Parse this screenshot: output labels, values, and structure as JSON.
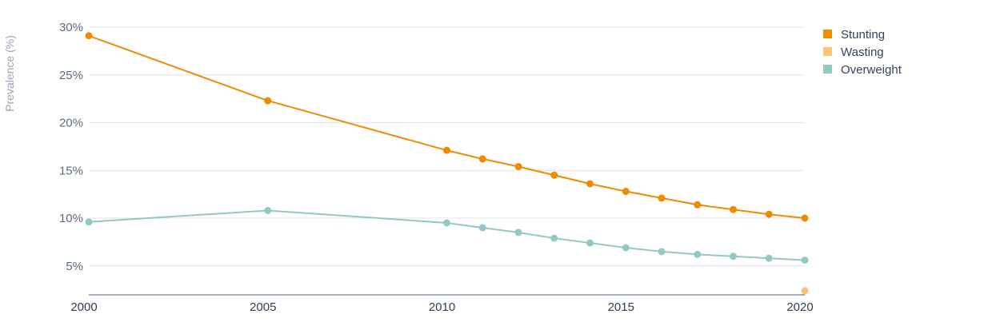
{
  "chart_data": {
    "type": "line",
    "ylabel": "Prevalence (%)",
    "xlabel": "",
    "ylim": [
      2.5,
      30
    ],
    "y_ticks": [
      5,
      10,
      15,
      20,
      25,
      30
    ],
    "y_tick_labels": [
      "5%",
      "10%",
      "15%",
      "20%",
      "25%",
      "30%"
    ],
    "x_ticks": [
      2000,
      2005,
      2010,
      2015,
      2020
    ],
    "x_tick_labels": [
      "2000",
      "2005",
      "2010",
      "2015",
      "2020"
    ],
    "xlim": [
      2000,
      2020
    ],
    "grid": true,
    "legend_position": "top-right",
    "series": [
      {
        "name": "Stunting",
        "color": "#ee8c00",
        "x": [
          2000,
          2005,
          2010,
          2011,
          2012,
          2013,
          2014,
          2015,
          2016,
          2017,
          2018,
          2019,
          2020
        ],
        "y": [
          29.1,
          22.3,
          17.1,
          16.2,
          15.4,
          14.5,
          13.6,
          12.8,
          12.1,
          11.4,
          10.9,
          10.4,
          10.0
        ]
      },
      {
        "name": "Wasting",
        "color": "#fdc47a",
        "x": [
          2020
        ],
        "y": [
          2.4
        ]
      },
      {
        "name": "Overweight",
        "color": "#93c9c5",
        "x": [
          2000,
          2005,
          2010,
          2011,
          2012,
          2013,
          2014,
          2015,
          2016,
          2017,
          2018,
          2019,
          2020
        ],
        "y": [
          9.6,
          10.8,
          9.5,
          9.0,
          8.5,
          7.9,
          7.4,
          6.9,
          6.5,
          6.2,
          6.0,
          5.8,
          5.6
        ]
      }
    ]
  }
}
